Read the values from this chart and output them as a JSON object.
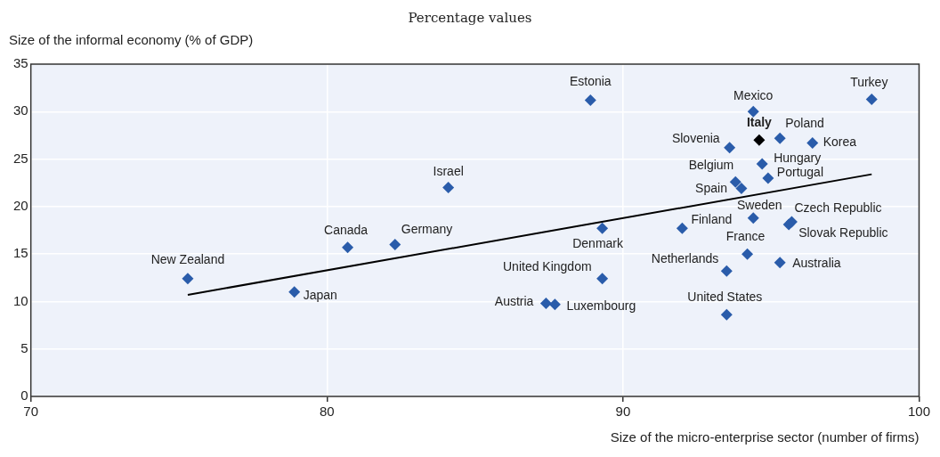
{
  "chart_data": {
    "type": "scatter",
    "title": "Percentage values",
    "ylabel": "Size of the informal economy (% of GDP)",
    "xlabel": "Size of the micro-enterprise sector (number of firms)",
    "xlim": [
      70,
      100
    ],
    "xticks": [
      70,
      80,
      90,
      100
    ],
    "ylim": [
      0,
      35
    ],
    "yticks": [
      0,
      5,
      10,
      15,
      20,
      25,
      30,
      35
    ],
    "grid": true,
    "series": [
      {
        "marker": "diamond",
        "color": "#2a5caa",
        "colors": [
          "#2a5caa",
          "#2a5caa",
          "#2a5caa",
          "#2a5caa",
          "#2a5caa",
          "#2a5caa",
          "#2a5caa",
          "#2a5caa",
          "#2a5caa",
          "#2a5caa",
          "#2a5caa",
          "#2a5caa",
          "#2a5caa",
          "#2a5caa",
          "#2a5caa",
          "#2a5caa",
          "#2a5caa",
          "#2a5caa",
          "#000000",
          "#2a5caa",
          "#2a5caa",
          "#2a5caa",
          "#2a5caa",
          "#2a5caa",
          "#2a5caa",
          "#2a5caa",
          "#2a5caa",
          "#2a5caa"
        ],
        "x": [
          75.3,
          78.9,
          80.7,
          82.3,
          84.1,
          88.9,
          89.3,
          89.3,
          87.4,
          87.7,
          92.0,
          93.5,
          93.5,
          94.2,
          93.6,
          93.8,
          94.0,
          94.4,
          94.6,
          94.4,
          94.7,
          94.9,
          95.3,
          95.3,
          95.7,
          95.6,
          96.4,
          98.4
        ],
        "values": [
          12.4,
          11.0,
          15.7,
          16.0,
          22.0,
          31.2,
          17.7,
          12.4,
          9.8,
          9.7,
          17.7,
          8.6,
          13.2,
          15.0,
          26.2,
          22.6,
          21.9,
          30.0,
          27.0,
          18.8,
          24.5,
          23.0,
          27.2,
          14.1,
          18.4,
          18.1,
          26.7,
          31.3
        ]
      },
      {
        "type": "line",
        "color": "#000000",
        "x": [
          75.3,
          98.4
        ],
        "values": [
          10.7,
          23.4
        ]
      }
    ],
    "annotations": [
      {
        "text": "New Zealand",
        "x": 75.3,
        "y": 12.4
      },
      {
        "text": "Japan",
        "x": 78.9,
        "y": 11.0
      },
      {
        "text": "Canada",
        "x": 80.7,
        "y": 15.7
      },
      {
        "text": "Germany",
        "x": 82.3,
        "y": 16.0
      },
      {
        "text": "Israel",
        "x": 84.1,
        "y": 22.0
      },
      {
        "text": "Estonia",
        "x": 88.9,
        "y": 31.2
      },
      {
        "text": "Denmark",
        "x": 89.3,
        "y": 17.7
      },
      {
        "text": "United Kingdom",
        "x": 89.3,
        "y": 12.4
      },
      {
        "text": "Austria",
        "x": 87.4,
        "y": 9.8
      },
      {
        "text": "Luxembourg",
        "x": 87.7,
        "y": 9.7
      },
      {
        "text": "Finland",
        "x": 92.0,
        "y": 17.7
      },
      {
        "text": "United States",
        "x": 93.5,
        "y": 8.6
      },
      {
        "text": "Netherlands",
        "x": 93.5,
        "y": 13.2
      },
      {
        "text": "France",
        "x": 94.2,
        "y": 15.0
      },
      {
        "text": "Slovenia",
        "x": 93.6,
        "y": 26.2
      },
      {
        "text": "Belgium",
        "x": 93.8,
        "y": 22.6
      },
      {
        "text": "Spain",
        "x": 94.0,
        "y": 21.9
      },
      {
        "text": "Mexico",
        "x": 94.4,
        "y": 30.0
      },
      {
        "text": "Italy",
        "x": 94.6,
        "y": 27.0
      },
      {
        "text": "Sweden",
        "x": 94.4,
        "y": 18.8
      },
      {
        "text": "Hungary",
        "x": 94.7,
        "y": 24.5
      },
      {
        "text": "Portugal",
        "x": 94.9,
        "y": 23.0
      },
      {
        "text": "Poland",
        "x": 95.3,
        "y": 27.2
      },
      {
        "text": "Australia",
        "x": 95.3,
        "y": 14.1
      },
      {
        "text": "Czech Republic",
        "x": 95.7,
        "y": 18.4
      },
      {
        "text": "Slovak Republic",
        "x": 95.6,
        "y": 18.1
      },
      {
        "text": "Korea",
        "x": 96.4,
        "y": 26.7
      },
      {
        "text": "Turkey",
        "x": 98.4,
        "y": 31.3
      }
    ]
  }
}
